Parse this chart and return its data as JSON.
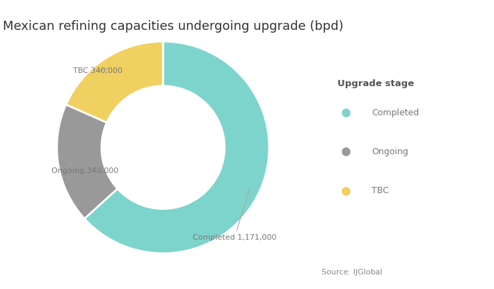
{
  "title": "Mexican refining capacities undergoing upgrade (bpd)",
  "slices": [
    1171000,
    340000,
    340000
  ],
  "labels": [
    "Completed",
    "Ongoing",
    "TBC"
  ],
  "colors": [
    "#7dd4cc",
    "#999999",
    "#f0d060"
  ],
  "annotation_labels": [
    "Completed 1,171,000",
    "Ongoing 340,000",
    "TBC 340,000"
  ],
  "legend_title": "Upgrade stage",
  "source_text": "Source: IJGlobal",
  "background_color": "#ffffff",
  "title_fontsize": 13,
  "donut_width": 0.42
}
